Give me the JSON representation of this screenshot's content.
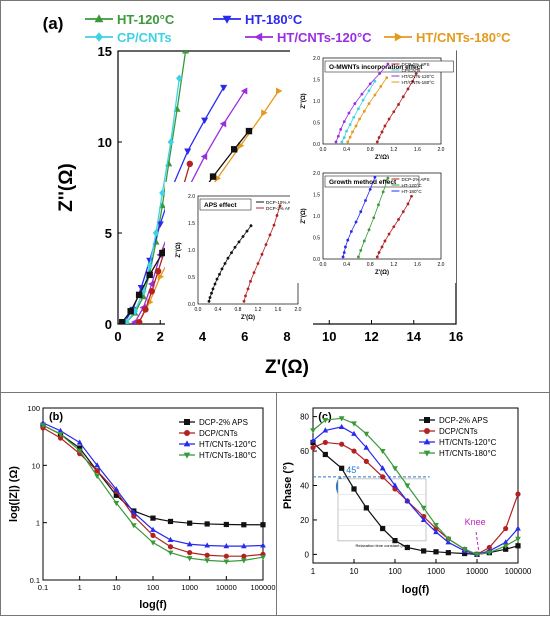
{
  "chart_data": [
    {
      "panel": "(a)",
      "type": "line",
      "xlabel": "Z'(Ω)",
      "ylabel": "Z''(Ω)",
      "xlim": [
        0,
        16
      ],
      "ylim": [
        0,
        15
      ],
      "xticks": [
        "0",
        "2",
        "4",
        "6",
        "8",
        "10",
        "12",
        "14",
        "16"
      ],
      "yticks": [
        "0",
        "5",
        "10",
        "15"
      ],
      "legend_position": "top",
      "series": [
        {
          "name": "HT-120°C",
          "color": "#3a9a3a",
          "marker": "triangle-up",
          "x": [
            0.4,
            0.8,
            1.2,
            1.5,
            1.8,
            2.1,
            2.4,
            2.8,
            3.2
          ],
          "y": [
            0.1,
            0.6,
            1.5,
            2.8,
            4.5,
            6.5,
            8.8,
            11.8,
            15
          ]
        },
        {
          "name": "HT-180°C",
          "color": "#2a2aef",
          "marker": "triangle-down",
          "x": [
            0.3,
            0.7,
            1.1,
            1.5,
            2.0,
            2.6,
            3.3,
            4.1,
            5.0
          ],
          "y": [
            0.1,
            0.8,
            2.0,
            3.5,
            5.5,
            7.6,
            9.5,
            11.2,
            13
          ]
        },
        {
          "name": "CP/CNTs",
          "color": "#3fd2e6",
          "marker": "diamond",
          "x": [
            0.4,
            0.8,
            1.2,
            1.5,
            1.8,
            2.1,
            2.5,
            2.9
          ],
          "y": [
            0.1,
            0.7,
            1.8,
            3.2,
            5.0,
            7.2,
            10,
            13.5
          ]
        },
        {
          "name": "HT/CNTs-120°C",
          "color": "#9a2de0",
          "marker": "triangle-left",
          "x": [
            0.8,
            1.2,
            1.6,
            2.0,
            2.6,
            3.3,
            4.1,
            5.0,
            6.0
          ],
          "y": [
            0.1,
            0.9,
            2.2,
            3.8,
            5.6,
            7.4,
            9.2,
            11,
            12.8
          ]
        },
        {
          "name": "HT/CNTs-180°C",
          "color": "#e49a1c",
          "marker": "triangle-right",
          "x": [
            1.0,
            1.5,
            2.0,
            2.8,
            3.7,
            4.7,
            5.8,
            6.9,
            7.6
          ],
          "y": [
            0.1,
            1.2,
            2.6,
            4.4,
            6.2,
            8.0,
            9.8,
            11.6,
            12.8
          ]
        },
        {
          "name": "DCP-2% APS",
          "color": "#b22222",
          "marker": "circle",
          "x": [
            1.0,
            1.3,
            1.6,
            1.9,
            2.2,
            2.6,
            3.0,
            3.4
          ],
          "y": [
            0.1,
            0.8,
            1.8,
            2.9,
            4.0,
            5.6,
            7.2,
            8.8
          ]
        },
        {
          "name": "DCP-10% APS",
          "color": "#111111",
          "marker": "square",
          "x": [
            0.2,
            0.6,
            1.0,
            1.5,
            2.1,
            2.8,
            3.6,
            4.5,
            5.5,
            6.2
          ],
          "y": [
            0.1,
            0.7,
            1.6,
            2.7,
            3.9,
            5.2,
            6.6,
            8.1,
            9.6,
            10.6
          ]
        }
      ],
      "legend_entries": [
        "HT-120°C",
        "HT-180°C",
        "CP/CNTs",
        "HT/CNTs-120°C",
        "HT/CNTs-180°C"
      ],
      "insets": [
        {
          "title": "APS effect",
          "xlabel": "Z'(Ω)",
          "ylabel": "Z''(Ω)",
          "xlim": [
            0,
            2.0
          ],
          "ylim": [
            0,
            2.0
          ],
          "xticks": [
            "0.0",
            "0.2",
            "0.4",
            "0.6",
            "0.8",
            "1.0",
            "1.2",
            "1.4",
            "1.6",
            "1.8",
            "2.0"
          ],
          "yticks": [
            "0.0",
            "0.5",
            "1.0",
            "1.5",
            "2.0"
          ],
          "legend": [
            "DCP-10% APS",
            "DCP-2% APS"
          ],
          "series": [
            {
              "name": "DCP-10% APS",
              "color": "#111111",
              "x": [
                0.22,
                0.24,
                0.27,
                0.3,
                0.34,
                0.38,
                0.43,
                0.48,
                0.54,
                0.6,
                0.67,
                0.74,
                0.82,
                0.9,
                0.98,
                1.06
              ],
              "y": [
                0.05,
                0.12,
                0.2,
                0.28,
                0.37,
                0.46,
                0.55,
                0.65,
                0.75,
                0.85,
                0.95,
                1.05,
                1.15,
                1.25,
                1.35,
                1.45
              ]
            },
            {
              "name": "DCP-2% APS",
              "color": "#b22222",
              "x": [
                0.92,
                0.95,
                1.0,
                1.05,
                1.12,
                1.2,
                1.28,
                1.36,
                1.44,
                1.52,
                1.58,
                1.64
              ],
              "y": [
                0.05,
                0.15,
                0.28,
                0.42,
                0.58,
                0.75,
                0.92,
                1.1,
                1.28,
                1.46,
                1.64,
                1.82
              ]
            }
          ]
        },
        {
          "title": "O-MWNTs incorporation effect",
          "xlabel": "Z'(Ω)",
          "ylabel": "Z''(Ω)",
          "xlim": [
            0,
            2.0
          ],
          "ylim": [
            0,
            2.0
          ],
          "xticks": [
            "0.0",
            "0.2",
            "0.4",
            "0.6",
            "0.8",
            "1.0",
            "1.2",
            "1.4",
            "1.6",
            "1.8",
            "2.0"
          ],
          "yticks": [
            "0.0",
            "0.5",
            "1.0",
            "1.5",
            "2.0"
          ],
          "legend": [
            "DCP-2% APS",
            "CP/CNTs",
            "HT/CNTs-120°C",
            "HT/CNTs-180°C"
          ],
          "series": [
            {
              "name": "DCP-2% APS",
              "color": "#b22222",
              "x": [
                0.92,
                0.95,
                1.0,
                1.05,
                1.12,
                1.2,
                1.28,
                1.36,
                1.44,
                1.52,
                1.58
              ],
              "y": [
                0.05,
                0.15,
                0.28,
                0.42,
                0.58,
                0.75,
                0.92,
                1.1,
                1.28,
                1.46,
                1.64
              ]
            },
            {
              "name": "CP/CNTs",
              "color": "#3fd2e6",
              "x": [
                0.32,
                0.36,
                0.4,
                0.46,
                0.52,
                0.6,
                0.68,
                0.78,
                0.88
              ],
              "y": [
                0.05,
                0.15,
                0.3,
                0.45,
                0.62,
                0.82,
                1.02,
                1.24,
                1.46
              ]
            },
            {
              "name": "HT/CNTs-120°C",
              "color": "#9a2de0",
              "x": [
                0.22,
                0.26,
                0.3,
                0.36,
                0.44,
                0.54,
                0.66,
                0.8,
                0.96,
                1.1
              ],
              "y": [
                0.05,
                0.18,
                0.34,
                0.52,
                0.72,
                0.94,
                1.16,
                1.4,
                1.64,
                1.86
              ]
            },
            {
              "name": "HT/CNTs-180°C",
              "color": "#e49a1c",
              "x": [
                0.42,
                0.46,
                0.5,
                0.56,
                0.62,
                0.7,
                0.78,
                0.88,
                0.98,
                1.08
              ],
              "y": [
                0.05,
                0.16,
                0.28,
                0.42,
                0.58,
                0.76,
                0.94,
                1.14,
                1.34,
                1.54
              ]
            }
          ]
        },
        {
          "title": "Growth method effect",
          "xlabel": "Z'(Ω)",
          "ylabel": "Z''(Ω)",
          "xlim": [
            0,
            2.0
          ],
          "ylim": [
            0,
            2.0
          ],
          "xticks": [
            "0.0",
            "0.2",
            "0.4",
            "0.6",
            "0.8",
            "1.0",
            "1.2",
            "1.4",
            "1.6",
            "1.8",
            "2.0"
          ],
          "yticks": [
            "0.0",
            "0.5",
            "1.0",
            "1.5",
            "2.0"
          ],
          "legend": [
            "DCP-2% APS",
            "HT-120°C",
            "HT-180°C"
          ],
          "series": [
            {
              "name": "DCP-2% APS",
              "color": "#b22222",
              "x": [
                0.92,
                0.95,
                1.0,
                1.05,
                1.12,
                1.2,
                1.28,
                1.36,
                1.44,
                1.5
              ],
              "y": [
                0.05,
                0.15,
                0.28,
                0.42,
                0.58,
                0.75,
                0.92,
                1.1,
                1.28,
                1.46
              ]
            },
            {
              "name": "HT-120°C",
              "color": "#3a9a3a",
              "x": [
                0.6,
                0.64,
                0.7,
                0.78,
                0.86,
                0.94,
                1.02,
                1.1
              ],
              "y": [
                0.05,
                0.2,
                0.42,
                0.68,
                0.96,
                1.26,
                1.56,
                1.88
              ]
            },
            {
              "name": "HT-180°C",
              "color": "#2a2aef",
              "x": [
                0.34,
                0.36,
                0.38,
                0.42,
                0.48,
                0.56,
                0.64,
                0.72,
                0.8,
                0.88
              ],
              "y": [
                0.05,
                0.15,
                0.28,
                0.44,
                0.64,
                0.86,
                1.1,
                1.36,
                1.62,
                1.9
              ]
            }
          ]
        }
      ]
    },
    {
      "panel": "(b)",
      "type": "line",
      "xlabel": "log(f)",
      "ylabel": "log(|Z|) (Ω)",
      "xscale": "log",
      "yscale": "log",
      "xlim": [
        0.1,
        100000
      ],
      "ylim": [
        0.1,
        100
      ],
      "xticks": [
        "0.1",
        "1",
        "10",
        "100",
        "1000",
        "10000",
        "100000"
      ],
      "yticks": [
        "0.1",
        "1",
        "10",
        "100"
      ],
      "legend_position": "top-right",
      "series": [
        {
          "name": "DCP-2% APS",
          "color": "#111111",
          "marker": "square",
          "x": [
            0.1,
            0.3,
            1,
            3,
            10,
            30,
            100,
            300,
            1000,
            3000,
            10000,
            30000,
            100000
          ],
          "y": [
            50,
            35,
            20,
            8,
            3,
            1.6,
            1.2,
            1.05,
            0.98,
            0.95,
            0.93,
            0.92,
            0.92
          ]
        },
        {
          "name": "DCP/CNTs",
          "color": "#b22222",
          "marker": "circle",
          "x": [
            0.1,
            0.3,
            1,
            3,
            10,
            30,
            100,
            300,
            1000,
            3000,
            10000,
            30000,
            100000
          ],
          "y": [
            45,
            30,
            16,
            8,
            3.5,
            1.3,
            0.6,
            0.38,
            0.3,
            0.27,
            0.26,
            0.26,
            0.28
          ]
        },
        {
          "name": "HT/CNTs-120°C",
          "color": "#2a2aef",
          "marker": "triangle-up",
          "x": [
            0.1,
            0.3,
            1,
            3,
            10,
            30,
            100,
            300,
            1000,
            3000,
            10000,
            30000,
            100000
          ],
          "y": [
            55,
            40,
            25,
            10,
            3.8,
            1.5,
            0.75,
            0.5,
            0.42,
            0.4,
            0.39,
            0.39,
            0.4
          ]
        },
        {
          "name": "HT/CNTs-180°C",
          "color": "#3a9a3a",
          "marker": "triangle-down",
          "x": [
            0.1,
            0.3,
            1,
            3,
            10,
            30,
            100,
            300,
            1000,
            3000,
            10000,
            30000,
            100000
          ],
          "y": [
            50,
            35,
            18,
            6.5,
            2.2,
            0.9,
            0.45,
            0.3,
            0.24,
            0.22,
            0.21,
            0.22,
            0.25
          ]
        }
      ]
    },
    {
      "panel": "(c)",
      "type": "line",
      "xlabel": "log(f)",
      "ylabel": "Phase (°)",
      "xscale": "log",
      "xlim": [
        1,
        100000
      ],
      "ylim": [
        -5,
        85
      ],
      "xticks": [
        "1",
        "10",
        "100",
        "1000",
        "10000",
        "100000"
      ],
      "yticks": [
        "0",
        "20",
        "40",
        "60",
        "80"
      ],
      "legend_position": "top-right",
      "annotations": [
        "45°",
        "Knee"
      ],
      "inset_label": "Relaxation time constant (ms)",
      "series": [
        {
          "name": "DCP-2% APS",
          "color": "#111111",
          "marker": "square",
          "x": [
            1,
            2,
            5,
            10,
            20,
            50,
            100,
            200,
            500,
            1000,
            2000,
            5000,
            10000,
            20000,
            50000,
            100000
          ],
          "y": [
            65,
            58,
            50,
            38,
            27,
            15,
            8,
            4,
            2,
            1.5,
            1,
            0.5,
            0,
            1,
            3,
            5
          ]
        },
        {
          "name": "DCP/CNTs",
          "color": "#b22222",
          "marker": "circle",
          "x": [
            1,
            2,
            5,
            10,
            20,
            50,
            100,
            200,
            500,
            1000,
            2000,
            5000,
            10000,
            20000,
            50000,
            100000
          ],
          "y": [
            62,
            65,
            64,
            60,
            54,
            45,
            38,
            31,
            22,
            15,
            9,
            3,
            0,
            4,
            15,
            35
          ]
        },
        {
          "name": "HT/CNTs-120°C",
          "color": "#2a2aef",
          "marker": "triangle-up",
          "x": [
            1,
            2,
            5,
            10,
            20,
            50,
            100,
            200,
            500,
            1000,
            2000,
            5000,
            10000,
            20000,
            50000,
            100000
          ],
          "y": [
            66,
            72,
            74,
            70,
            62,
            50,
            40,
            31,
            20,
            13,
            7,
            2,
            0,
            2,
            7,
            15
          ]
        },
        {
          "name": "HT/CNTs-180°C",
          "color": "#3a9a3a",
          "marker": "triangle-down",
          "x": [
            1,
            2,
            5,
            10,
            20,
            50,
            100,
            200,
            500,
            1000,
            2000,
            5000,
            10000,
            20000,
            50000,
            100000
          ],
          "y": [
            72,
            78,
            79,
            76,
            70,
            60,
            50,
            40,
            27,
            17,
            9,
            3,
            0,
            1,
            5,
            9
          ]
        }
      ]
    }
  ]
}
